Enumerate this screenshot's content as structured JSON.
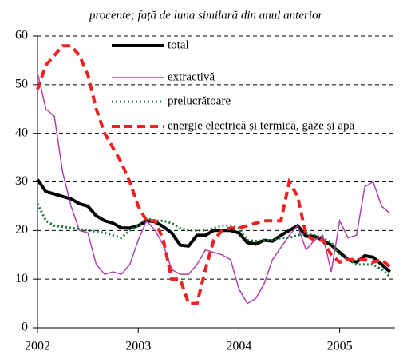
{
  "chart_data": {
    "type": "line",
    "subtitle": "procente; față de luna similară din anul anterior",
    "x": [
      2002,
      2002.083,
      2002.167,
      2002.25,
      2002.333,
      2002.417,
      2002.5,
      2002.583,
      2002.667,
      2002.75,
      2002.833,
      2002.917,
      2003,
      2003.083,
      2003.167,
      2003.25,
      2003.333,
      2003.417,
      2003.5,
      2003.583,
      2003.667,
      2003.75,
      2003.833,
      2003.917,
      2004,
      2004.083,
      2004.167,
      2004.25,
      2004.333,
      2004.417,
      2004.5,
      2004.583,
      2004.667,
      2004.75,
      2004.833,
      2004.917,
      2005,
      2005.083,
      2005.167,
      2005.25,
      2005.333,
      2005.417,
      2005.5
    ],
    "xlim": [
      2002,
      2005.55
    ],
    "xticks": [
      2002,
      2003,
      2004,
      2005
    ],
    "ylim": [
      0,
      60
    ],
    "yticks": [
      0,
      10,
      20,
      30,
      40,
      50,
      60
    ],
    "grid": true,
    "series": [
      {
        "name": "total",
        "color": "#000000",
        "style": "solid",
        "width": 4,
        "values": [
          30.5,
          28,
          27.5,
          27,
          26.5,
          25.5,
          25,
          23,
          22,
          21.5,
          20.5,
          20.5,
          21,
          22,
          21.8,
          20.8,
          19.5,
          17,
          16.8,
          19,
          19,
          20,
          20,
          20,
          19.5,
          17.5,
          17.2,
          18,
          17.8,
          19,
          20,
          21,
          18.8,
          18.8,
          18,
          17,
          15.5,
          14,
          13.5,
          14.8,
          14.5,
          13,
          11.5
        ]
      },
      {
        "name": "extractivă",
        "color": "#b040b0",
        "style": "solid",
        "width": 1.5,
        "values": [
          52.5,
          45,
          43.5,
          32,
          25,
          20,
          19.5,
          13,
          11,
          11.5,
          11,
          13,
          18,
          22,
          20,
          17,
          12,
          11,
          11,
          13,
          16,
          15.5,
          15,
          14,
          8,
          5,
          6,
          9,
          14,
          16.5,
          19,
          21,
          16,
          18,
          19,
          11.5,
          22,
          18.5,
          19,
          29,
          30,
          25,
          23.5
        ]
      },
      {
        "name": "prelucrătoare",
        "color": "#1a7a3a",
        "style": "dotted",
        "width": 3,
        "values": [
          25.5,
          22,
          21,
          20.8,
          20.5,
          20.3,
          20,
          19.8,
          19.5,
          19,
          18.5,
          20,
          21,
          22.5,
          22,
          22,
          21.5,
          20.5,
          20,
          20,
          20,
          20.5,
          21,
          21,
          20.5,
          18,
          17.8,
          18,
          18,
          18.5,
          18.5,
          19,
          19.5,
          19,
          18.5,
          17.5,
          15,
          14,
          13,
          13,
          13,
          12,
          10.5
        ]
      },
      {
        "name": "energie electrică și termică, gaze și apă",
        "color": "#ee2222",
        "style": "dashed",
        "width": 4,
        "values": [
          49,
          54,
          56,
          58,
          58,
          56,
          52,
          45,
          40,
          37,
          34,
          30,
          25,
          22,
          22,
          18,
          10,
          10,
          5,
          5,
          12,
          18,
          20,
          20.5,
          20.5,
          21,
          21.5,
          22,
          22,
          22,
          30,
          27,
          19,
          18,
          18,
          15,
          13.5,
          14,
          14,
          14,
          13.5,
          14,
          12.5
        ]
      }
    ]
  }
}
